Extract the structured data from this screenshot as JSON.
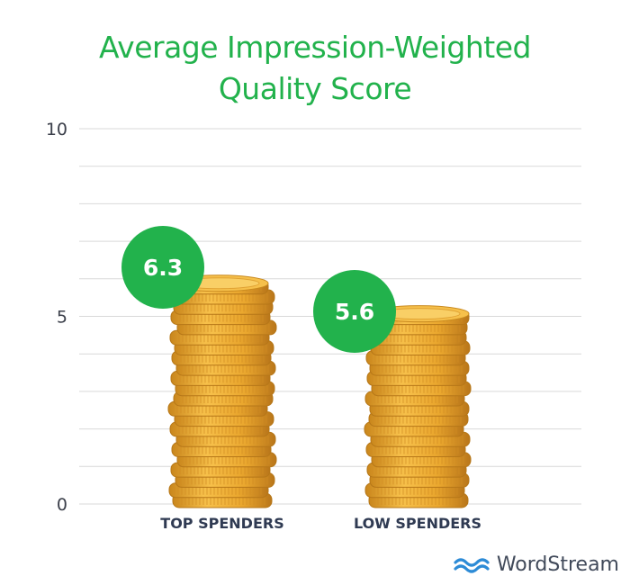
{
  "chart_data": {
    "type": "bar",
    "title": "Average Impression-Weighted Quality Score",
    "title_lines": [
      "Average Impression-Weighted",
      "Quality Score"
    ],
    "categories": [
      "TOP SPENDERS",
      "LOW SPENDERS"
    ],
    "values": [
      6.3,
      5.6
    ],
    "data_labels": [
      "6.3",
      "5.6"
    ],
    "ylim": [
      0,
      10
    ],
    "yticks": [
      "0",
      "5",
      "10"
    ],
    "grid": true,
    "colors": {
      "title": "#22b24c",
      "badge": "#22b24c",
      "coin": "#f2b43a",
      "grid": "#d9d9d9"
    }
  },
  "brand": {
    "name": "WordStream",
    "icon": "wordstream-wave-icon",
    "color": "#2d8bd6"
  }
}
